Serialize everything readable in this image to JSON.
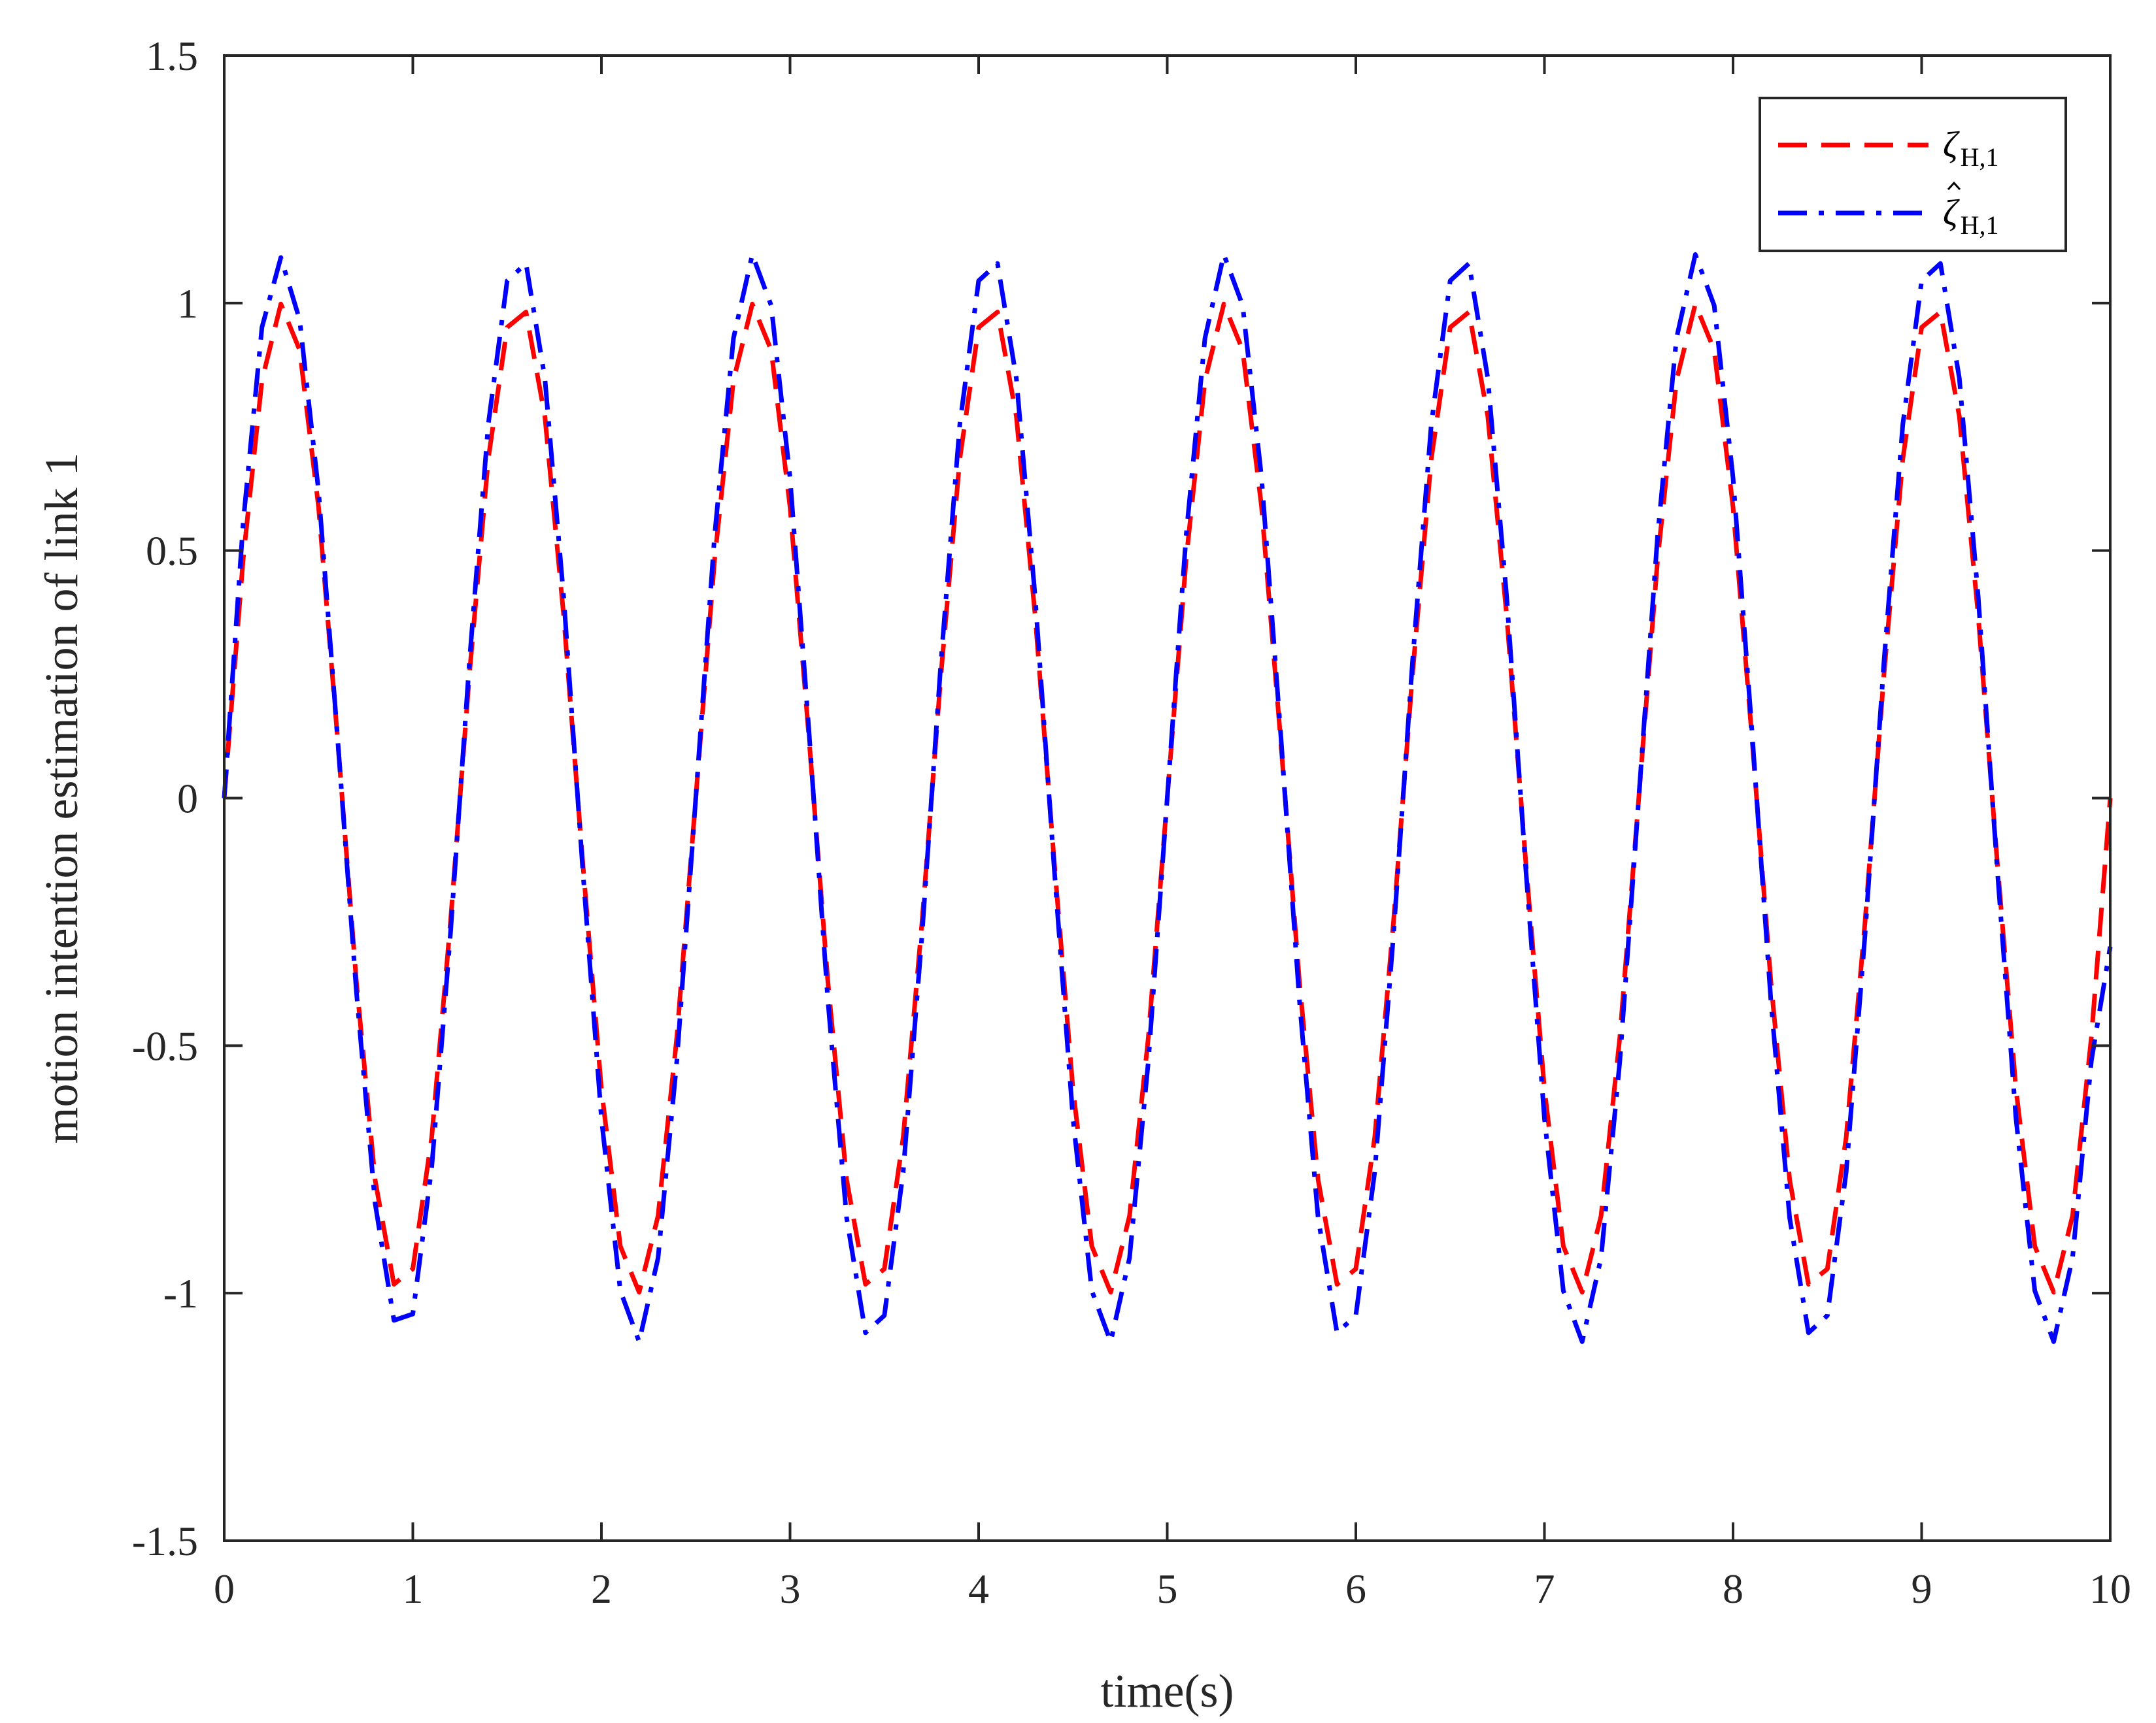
{
  "chart_data": {
    "type": "line",
    "xlabel": "time(s)",
    "ylabel": "motion intention estimation of link 1",
    "xlim": [
      0,
      10
    ],
    "ylim": [
      -1.5,
      1.5
    ],
    "xticks": [
      "0",
      "1",
      "2",
      "3",
      "4",
      "5",
      "6",
      "7",
      "8",
      "9",
      "10"
    ],
    "yticks": [
      "-1.5",
      "-1",
      "-0.5",
      "0",
      "0.5",
      "1",
      "1.5"
    ],
    "grid": false,
    "legend_position": "top-right",
    "x_sample_step": 0.1,
    "series": [
      {
        "name": "ζ_{H,1}",
        "legend_main": "ζ",
        "legend_sub": "H,1",
        "legend_hat": false,
        "color": "#ff0000",
        "line_style": "dashed",
        "values": [
          0.0,
          0.482,
          0.844,
          0.998,
          0.905,
          0.588,
          0.125,
          -0.368,
          -0.771,
          -0.982,
          -0.951,
          -0.685,
          -0.249,
          0.249,
          0.685,
          0.951,
          0.982,
          0.771,
          0.368,
          -0.125,
          -0.588,
          -0.905,
          -0.998,
          -0.844,
          -0.482,
          0.0,
          0.482,
          0.844,
          0.998,
          0.905,
          0.588,
          0.125,
          -0.368,
          -0.771,
          -0.982,
          -0.951,
          -0.685,
          -0.249,
          0.249,
          0.685,
          0.951,
          0.982,
          0.771,
          0.368,
          -0.125,
          -0.588,
          -0.905,
          -0.998,
          -0.844,
          -0.482,
          0.0,
          0.482,
          0.844,
          0.998,
          0.905,
          0.588,
          0.125,
          -0.368,
          -0.771,
          -0.982,
          -0.951,
          -0.685,
          -0.249,
          0.249,
          0.685,
          0.951,
          0.982,
          0.771,
          0.368,
          -0.125,
          -0.588,
          -0.905,
          -0.998,
          -0.844,
          -0.482,
          0.0,
          0.482,
          0.844,
          0.998,
          0.905,
          0.588,
          0.125,
          -0.368,
          -0.771,
          -0.982,
          -0.951,
          -0.685,
          -0.249,
          0.249,
          0.685,
          0.951,
          0.982,
          0.771,
          0.368,
          -0.125,
          -0.588,
          -0.905,
          -0.998,
          -0.844,
          -0.482,
          0.0
        ]
      },
      {
        "name": "ζ̂_{H,1}",
        "legend_main": "ζ",
        "legend_sub": "H,1",
        "legend_hat": true,
        "color": "#0000ff",
        "line_style": "dash-dot",
        "values": [
          0.0,
          0.555,
          0.951,
          1.092,
          0.966,
          0.62,
          0.127,
          -0.388,
          -0.818,
          -1.055,
          -1.042,
          -0.746,
          -0.271,
          0.274,
          0.755,
          1.045,
          1.08,
          0.848,
          0.405,
          -0.138,
          -0.647,
          -0.995,
          -1.098,
          -0.929,
          -0.53,
          0.0,
          0.53,
          0.929,
          1.098,
          0.995,
          0.647,
          0.138,
          -0.405,
          -0.848,
          -1.08,
          -1.045,
          -0.755,
          -0.274,
          0.274,
          0.755,
          1.045,
          1.08,
          0.848,
          0.405,
          -0.138,
          -0.647,
          -0.995,
          -1.098,
          -0.929,
          -0.53,
          0.0,
          0.53,
          0.929,
          1.098,
          0.995,
          0.647,
          0.138,
          -0.405,
          -0.848,
          -1.08,
          -1.045,
          -0.755,
          -0.274,
          0.274,
          0.755,
          1.045,
          1.08,
          0.848,
          0.405,
          -0.138,
          -0.647,
          -0.995,
          -1.098,
          -0.929,
          -0.53,
          0.0,
          0.53,
          0.929,
          1.098,
          0.995,
          0.647,
          0.138,
          -0.405,
          -0.848,
          -1.08,
          -1.045,
          -0.755,
          -0.274,
          0.274,
          0.755,
          1.045,
          1.08,
          0.848,
          0.405,
          -0.138,
          -0.647,
          -0.995,
          -1.098,
          -0.929,
          -0.53,
          -0.3
        ]
      }
    ]
  }
}
